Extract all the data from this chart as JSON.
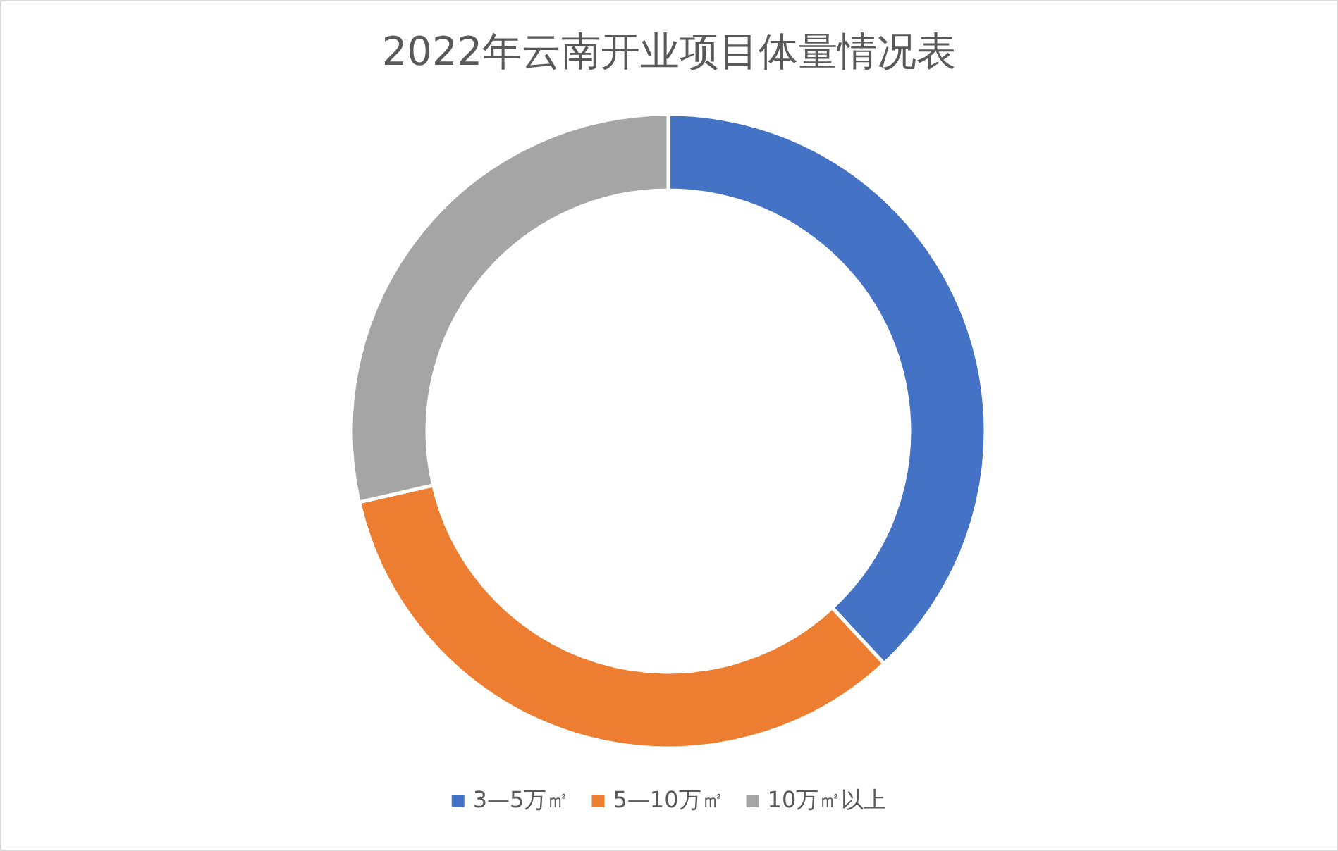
{
  "chart_data": {
    "type": "donut",
    "title": "2022年云南开业项目体量情况表",
    "categories": [
      "3—5万㎡",
      "5—10万㎡",
      "10万㎡以上"
    ],
    "values": [
      38.1,
      33.3,
      28.6
    ],
    "colors": [
      "#4472c4",
      "#ed7d31",
      "#a5a5a5"
    ],
    "legend": "bottom"
  }
}
